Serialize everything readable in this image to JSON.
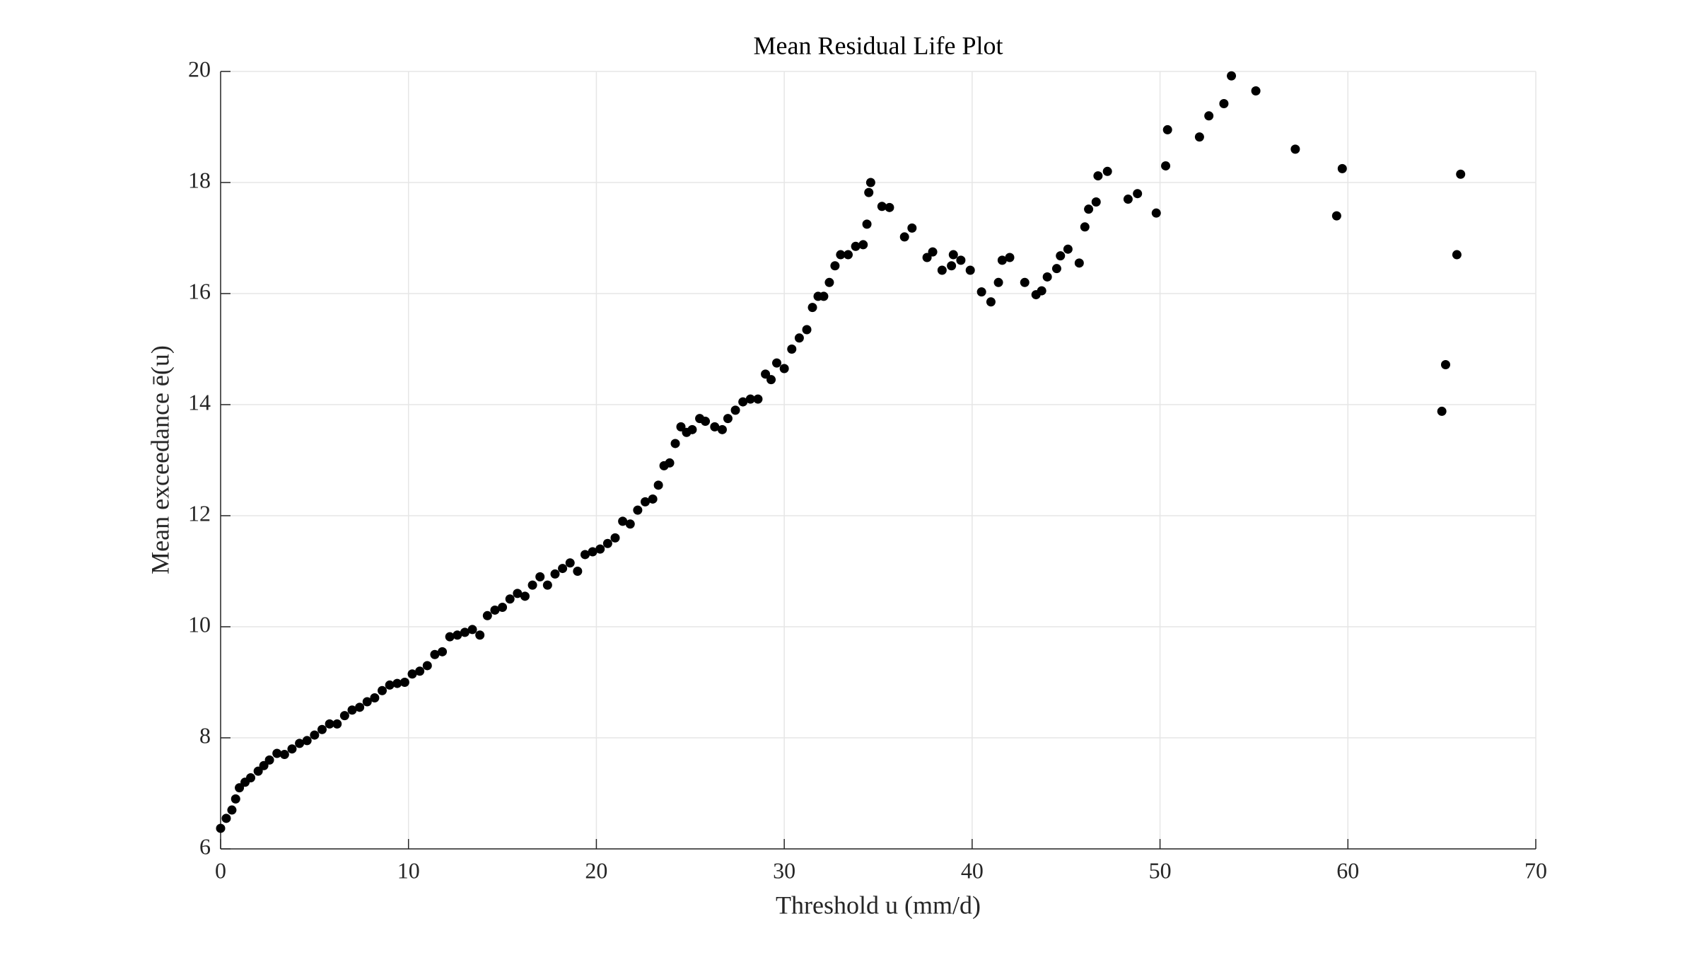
{
  "chart_data": {
    "type": "scatter",
    "title": "Mean Residual Life Plot",
    "x_label": "Threshold u (mm/d)",
    "y_label": "Mean exceedance ē(u)",
    "color": "#000000",
    "grid": true,
    "xlim": [
      0,
      70
    ],
    "ylim": [
      6,
      20
    ],
    "xticks": [
      0,
      10,
      20,
      30,
      40,
      50,
      60,
      70
    ],
    "yticks": [
      6,
      8,
      10,
      12,
      14,
      16,
      18,
      20
    ],
    "x": [
      0,
      0.3,
      0.6,
      0.8,
      1.0,
      1.3,
      1.6,
      2.0,
      2.3,
      2.6,
      3.0,
      3.4,
      3.8,
      4.2,
      4.6,
      5.0,
      5.4,
      5.8,
      6.2,
      6.6,
      7.0,
      7.4,
      7.8,
      8.2,
      8.6,
      9.0,
      9.4,
      9.8,
      10.2,
      10.6,
      11.0,
      11.4,
      11.8,
      12.2,
      12.6,
      13.0,
      13.4,
      13.8,
      14.2,
      14.6,
      15.0,
      15.4,
      15.8,
      16.2,
      16.6,
      17.0,
      17.4,
      17.8,
      18.2,
      18.6,
      19.0,
      19.4,
      19.8,
      20.2,
      20.6,
      21.0,
      21.4,
      21.8,
      22.2,
      22.6,
      23.0,
      23.3,
      23.6,
      23.9,
      24.2,
      24.5,
      24.8,
      25.1,
      25.5,
      25.8,
      26.3,
      26.7,
      27.0,
      27.4,
      27.8,
      28.2,
      28.6,
      29.0,
      29.3,
      29.6,
      30.0,
      30.4,
      30.8,
      31.2,
      31.5,
      31.8,
      32.1,
      32.4,
      32.7,
      33.0,
      33.4,
      33.8,
      34.2,
      34.4,
      34.5,
      34.6,
      35.2,
      35.6,
      36.4,
      36.8,
      37.6,
      37.9,
      38.4,
      38.9,
      39.0,
      39.4,
      39.9,
      40.5,
      41.0,
      41.4,
      41.6,
      42.0,
      42.8,
      43.4,
      43.7,
      44.0,
      44.5,
      44.7,
      45.1,
      45.7,
      46.0,
      46.2,
      46.6,
      46.7,
      47.2,
      48.3,
      48.8,
      49.8,
      50.3,
      50.4,
      52.1,
      52.6,
      53.4,
      53.8,
      55.1,
      57.2,
      59.4,
      59.7,
      65.0,
      65.2,
      65.8,
      66.0
    ],
    "y": [
      6.37,
      6.55,
      6.7,
      6.9,
      7.1,
      7.2,
      7.28,
      7.4,
      7.5,
      7.6,
      7.72,
      7.7,
      7.8,
      7.9,
      7.95,
      8.05,
      8.15,
      8.25,
      8.25,
      8.4,
      8.5,
      8.55,
      8.65,
      8.72,
      8.85,
      8.95,
      8.98,
      9.0,
      9.15,
      9.2,
      9.3,
      9.5,
      9.55,
      9.82,
      9.85,
      9.9,
      9.95,
      9.85,
      10.2,
      10.3,
      10.35,
      10.5,
      10.6,
      10.55,
      10.75,
      10.9,
      10.75,
      10.95,
      11.05,
      11.15,
      11.0,
      11.3,
      11.35,
      11.4,
      11.5,
      11.6,
      11.9,
      11.85,
      12.1,
      12.25,
      12.3,
      12.55,
      12.9,
      12.95,
      13.3,
      13.6,
      13.5,
      13.55,
      13.75,
      13.7,
      13.6,
      13.55,
      13.75,
      13.9,
      14.05,
      14.1,
      14.1,
      14.55,
      14.45,
      14.75,
      14.65,
      15.0,
      15.2,
      15.35,
      15.75,
      15.95,
      15.95,
      16.2,
      16.5,
      16.7,
      16.7,
      16.85,
      16.88,
      17.25,
      17.82,
      18.0,
      17.57,
      17.55,
      17.02,
      17.18,
      16.65,
      16.75,
      16.42,
      16.5,
      16.7,
      16.6,
      16.42,
      16.03,
      15.85,
      16.2,
      16.6,
      16.65,
      16.2,
      15.98,
      16.05,
      16.3,
      16.45,
      16.68,
      16.8,
      16.55,
      17.2,
      17.52,
      17.65,
      18.12,
      18.2,
      17.7,
      17.8,
      17.45,
      18.3,
      18.95,
      18.82,
      19.2,
      19.42,
      19.92,
      19.65,
      18.6,
      17.4,
      18.25,
      13.88,
      14.72,
      16.7,
      18.15
    ]
  }
}
